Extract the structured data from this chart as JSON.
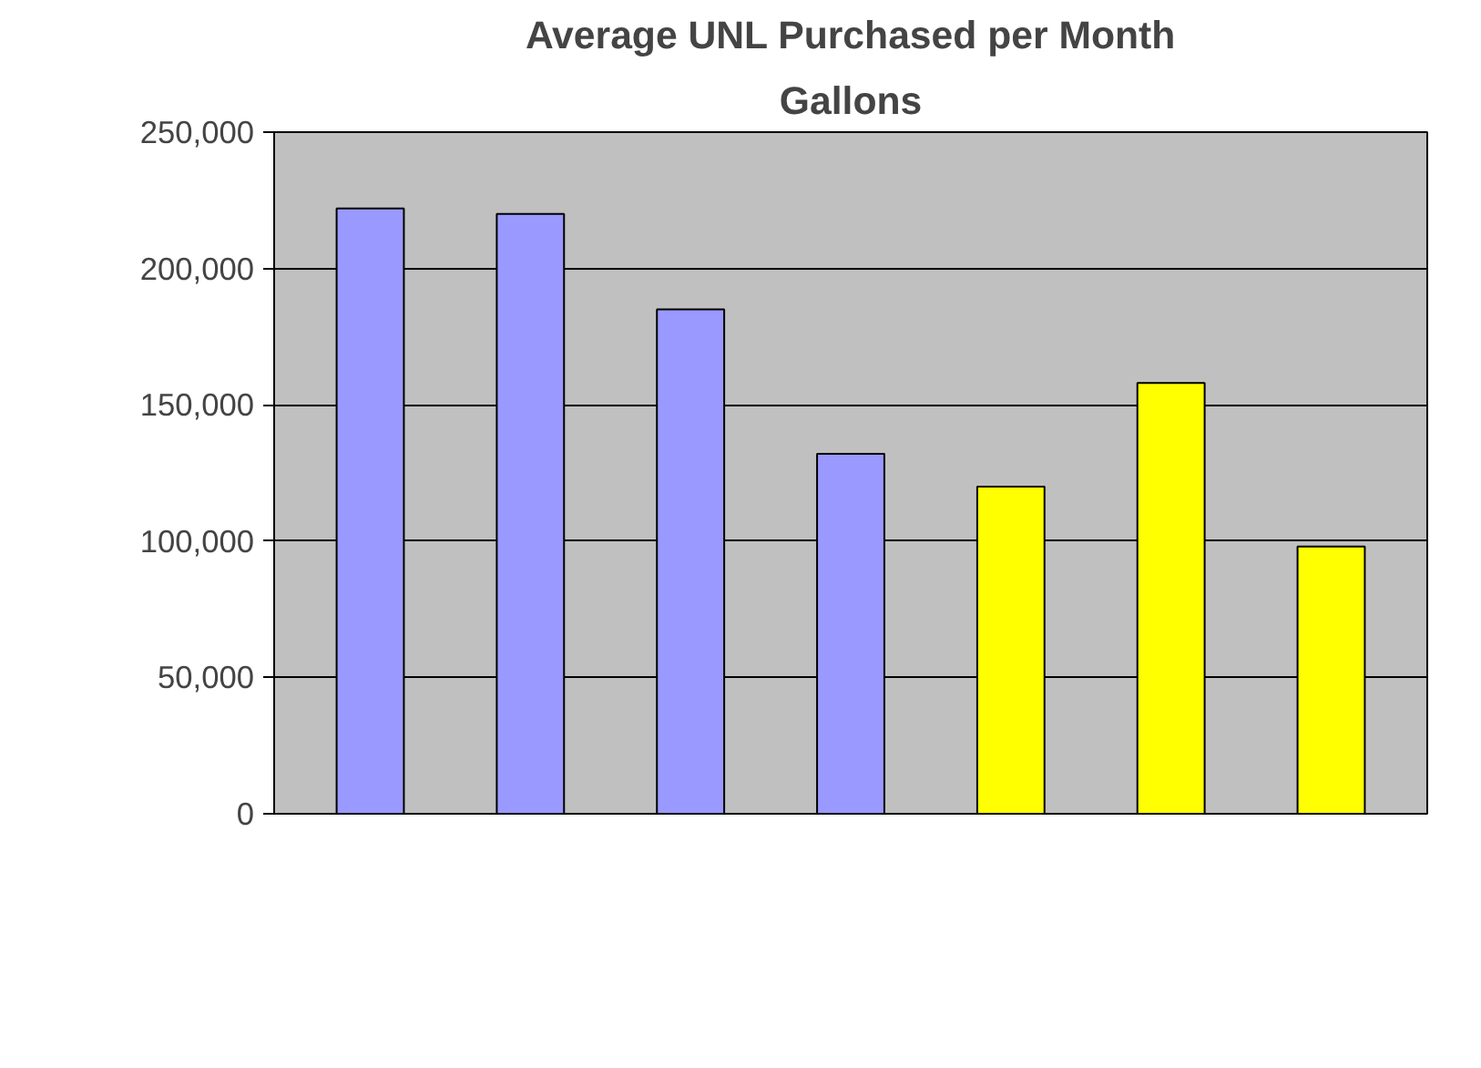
{
  "chart_data": {
    "type": "bar",
    "title": "Average UNL Purchased per Month",
    "subtitle": "Gallons",
    "categories": [
      null,
      null,
      null,
      null,
      null,
      null,
      null
    ],
    "values": [
      222000,
      220000,
      185000,
      132000,
      120000,
      158000,
      98000
    ],
    "colors": [
      "#9999ff",
      "#9999ff",
      "#9999ff",
      "#9999ff",
      "#ffff00",
      "#ffff00",
      "#ffff00"
    ],
    "ylim": [
      0,
      250000
    ],
    "yticks": [
      0,
      {
        "value": 50000,
        "label": "50,000"
      },
      {
        "value": 100000,
        "label": "100,000"
      },
      {
        "value": 150000,
        "label": "150,000"
      },
      {
        "value": 200000,
        "label": "200,000"
      },
      {
        "value": 250000,
        "label": "250,000"
      }
    ],
    "grid": "y"
  }
}
